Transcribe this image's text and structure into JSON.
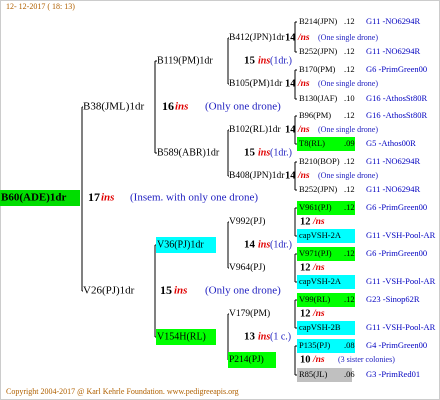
{
  "header": {
    "date": "12- 12-2017 ( 18: 13)"
  },
  "footer": {
    "copyright": "Copyright 2004-2017 @ Karl Kehrle Foundation.   www.pedigreeapis.org"
  },
  "tree": {
    "nodes": [
      {
        "label": "B60(ADE)1dr",
        "count": "17",
        "ins": "ins",
        "note": "(Insem. with only one drone)"
      },
      {
        "label": "B38(JML)1dr",
        "count": "16",
        "ins": "ins",
        "note": "(Only one drone)"
      },
      {
        "label": "V26(PJ)1dr",
        "count": "15",
        "ins": "ins",
        "note": "(Only one drone)"
      },
      {
        "label": "B119(PM)1dr",
        "count": "15",
        "ins": "ins",
        "note": "(1dr.)"
      },
      {
        "label": "B589(ABR)1dr",
        "count": "15",
        "ins": "ins",
        "note": "(1dr.)"
      },
      {
        "label": "V36(PJ)1dr",
        "count": "14",
        "ins": "ins",
        "note": "(1dr.)"
      },
      {
        "label": "V154H(RL)",
        "count": "13",
        "ins": "ins",
        "note": "(1 c.)"
      },
      {
        "label": "B412(JPN)1dr",
        "count": "14",
        "ins": "/ns",
        "note": "(One single drone)"
      },
      {
        "label": "B105(PM)1dr",
        "count": "14",
        "ins": "/ns",
        "note": "(One single drone)"
      },
      {
        "label": "B102(RL)1dr",
        "count": "14",
        "ins": "/ns",
        "note": "(One single drone)"
      },
      {
        "label": "B408(JPN)1dr",
        "count": "14",
        "ins": "/ns",
        "note": "(One single drone)"
      },
      {
        "label": "V992(PJ)",
        "count": "12",
        "ins": "/ns"
      },
      {
        "label": "V964(PJ)",
        "count": "12",
        "ins": "/ns"
      },
      {
        "label": "V179(PM)",
        "count": "12",
        "ins": "/ns"
      },
      {
        "label": "P214(PJ)",
        "count": "10",
        "ins": "/ns",
        "note": "(3 sister colonies)"
      }
    ],
    "ancestors": [
      {
        "name": "B214(JPN)",
        "value": ".12",
        "origin": "G11 -NO6294R"
      },
      {
        "name": "B252(JPN)",
        "value": ".12",
        "origin": "G11 -NO6294R"
      },
      {
        "name": "B170(PM)",
        "value": ".12",
        "origin": "G6 -PrimGreen00"
      },
      {
        "name": "B130(JAF)",
        "value": ".10",
        "origin": "G16 -AthosSt80R"
      },
      {
        "name": "B96(PM)",
        "value": ".12",
        "origin": "G16 -AthosSt80R"
      },
      {
        "name": "T8(RL)",
        "value": ".09",
        "origin": "G5 -Athos00R"
      },
      {
        "name": "B210(BOP)",
        "value": ".12",
        "origin": "G11 -NO6294R"
      },
      {
        "name": "B252(JPN)",
        "value": ".12",
        "origin": "G11 -NO6294R"
      },
      {
        "name": "V961(PJ)",
        "value": ".12",
        "origin": "G6 -PrimGreen00"
      },
      {
        "name": "capVSH-2A",
        "origin": "G11 -VSH-Pool-AR"
      },
      {
        "name": "V971(PJ)",
        "value": ".12",
        "origin": "G6 -PrimGreen00"
      },
      {
        "name": "capVSH-2A",
        "origin": "G11 -VSH-Pool-AR"
      },
      {
        "name": "V99(RL)",
        "value": ".12",
        "origin": "G23 -Sinop62R"
      },
      {
        "name": "capVSH-2B",
        "origin": "G11 -VSH-Pool-AR"
      },
      {
        "name": "P135(PJ)",
        "value": ".08",
        "origin": "G4 -PrimGreen00"
      },
      {
        "name": "R85(JL)",
        "value": ".06",
        "origin": "G3 -PrimRed01"
      }
    ]
  }
}
